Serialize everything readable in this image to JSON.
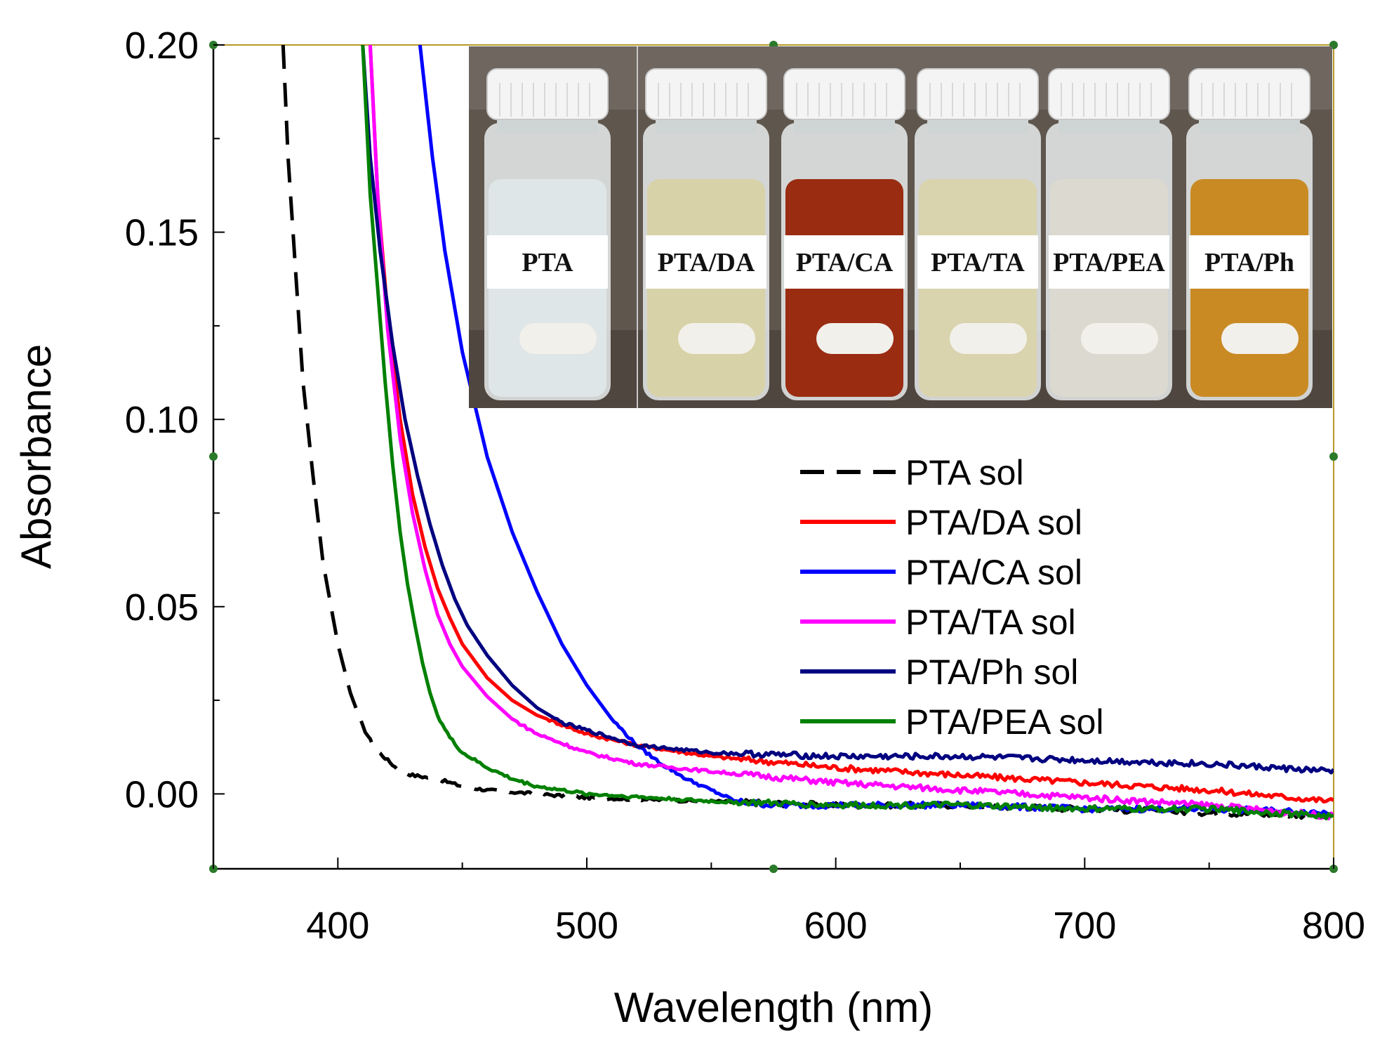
{
  "chart_data": {
    "type": "line",
    "title": "",
    "xlabel": "Wavelength (nm)",
    "ylabel": "Absorbance",
    "xlim": [
      350,
      800
    ],
    "ylim": [
      -0.02,
      0.2
    ],
    "x_ticks": [
      400,
      500,
      600,
      700,
      800
    ],
    "x_tick_labels": [
      "400",
      "500",
      "600",
      "700",
      "800"
    ],
    "y_ticks": [
      0.0,
      0.05,
      0.1,
      0.15,
      0.2
    ],
    "y_tick_labels": [
      "0.00",
      "0.05",
      "0.10",
      "0.15",
      "0.20"
    ],
    "grid": false,
    "legend_position": "center-right",
    "series": [
      {
        "name": "PTA sol",
        "color": "#000000",
        "style": "dashed",
        "points": [
          [
            378,
            0.2
          ],
          [
            380,
            0.17
          ],
          [
            383,
            0.14
          ],
          [
            386,
            0.11
          ],
          [
            390,
            0.085
          ],
          [
            394,
            0.062
          ],
          [
            400,
            0.04
          ],
          [
            405,
            0.027
          ],
          [
            410,
            0.018
          ],
          [
            415,
            0.012
          ],
          [
            420,
            0.009
          ],
          [
            425,
            0.006
          ],
          [
            430,
            0.005
          ],
          [
            440,
            0.004
          ],
          [
            450,
            0.002
          ],
          [
            460,
            0.001
          ],
          [
            480,
            0.0
          ],
          [
            500,
            -0.001
          ],
          [
            550,
            -0.002
          ],
          [
            600,
            -0.003
          ],
          [
            650,
            -0.003
          ],
          [
            700,
            -0.004
          ],
          [
            750,
            -0.005
          ],
          [
            800,
            -0.006
          ]
        ]
      },
      {
        "name": "PTA/DA sol",
        "color": "#ff0000",
        "style": "solid",
        "points": [
          [
            413,
            0.2
          ],
          [
            416,
            0.16
          ],
          [
            420,
            0.128
          ],
          [
            425,
            0.1
          ],
          [
            430,
            0.08
          ],
          [
            435,
            0.066
          ],
          [
            440,
            0.055
          ],
          [
            445,
            0.047
          ],
          [
            450,
            0.04
          ],
          [
            460,
            0.031
          ],
          [
            470,
            0.025
          ],
          [
            480,
            0.021
          ],
          [
            500,
            0.016
          ],
          [
            520,
            0.013
          ],
          [
            550,
            0.01
          ],
          [
            600,
            0.007
          ],
          [
            650,
            0.005
          ],
          [
            700,
            0.003
          ],
          [
            750,
            0.001
          ],
          [
            800,
            -0.002
          ]
        ]
      },
      {
        "name": "PTA/CA sol",
        "color": "#0000ff",
        "style": "solid",
        "points": [
          [
            433,
            0.2
          ],
          [
            438,
            0.17
          ],
          [
            443,
            0.145
          ],
          [
            450,
            0.118
          ],
          [
            460,
            0.09
          ],
          [
            470,
            0.07
          ],
          [
            480,
            0.054
          ],
          [
            490,
            0.04
          ],
          [
            500,
            0.029
          ],
          [
            510,
            0.02
          ],
          [
            520,
            0.013
          ],
          [
            530,
            0.008
          ],
          [
            540,
            0.004
          ],
          [
            550,
            0.001
          ],
          [
            560,
            -0.002
          ],
          [
            575,
            -0.003
          ],
          [
            600,
            -0.003
          ],
          [
            650,
            -0.003
          ],
          [
            700,
            -0.004
          ],
          [
            750,
            -0.004
          ],
          [
            800,
            -0.005
          ]
        ]
      },
      {
        "name": "PTA/TA sol",
        "color": "#ff00ff",
        "style": "solid",
        "points": [
          [
            413,
            0.2
          ],
          [
            416,
            0.16
          ],
          [
            420,
            0.124
          ],
          [
            425,
            0.095
          ],
          [
            430,
            0.075
          ],
          [
            435,
            0.06
          ],
          [
            440,
            0.048
          ],
          [
            445,
            0.04
          ],
          [
            450,
            0.034
          ],
          [
            460,
            0.026
          ],
          [
            470,
            0.02
          ],
          [
            480,
            0.016
          ],
          [
            500,
            0.011
          ],
          [
            520,
            0.008
          ],
          [
            550,
            0.006
          ],
          [
            600,
            0.003
          ],
          [
            650,
            0.001
          ],
          [
            700,
            -0.001
          ],
          [
            750,
            -0.003
          ],
          [
            800,
            -0.006
          ]
        ]
      },
      {
        "name": "PTA/Ph sol",
        "color": "#000080",
        "style": "solid",
        "points": [
          [
            410,
            0.2
          ],
          [
            413,
            0.17
          ],
          [
            417,
            0.145
          ],
          [
            422,
            0.12
          ],
          [
            427,
            0.1
          ],
          [
            432,
            0.085
          ],
          [
            437,
            0.072
          ],
          [
            442,
            0.061
          ],
          [
            447,
            0.052
          ],
          [
            452,
            0.045
          ],
          [
            460,
            0.037
          ],
          [
            470,
            0.029
          ],
          [
            480,
            0.023
          ],
          [
            490,
            0.019
          ],
          [
            500,
            0.017
          ],
          [
            520,
            0.013
          ],
          [
            550,
            0.011
          ],
          [
            600,
            0.01
          ],
          [
            650,
            0.01
          ],
          [
            700,
            0.009
          ],
          [
            750,
            0.008
          ],
          [
            800,
            0.006
          ]
        ]
      },
      {
        "name": "PTA/PEA sol",
        "color": "#008000",
        "style": "solid",
        "points": [
          [
            410,
            0.2
          ],
          [
            413,
            0.16
          ],
          [
            416,
            0.135
          ],
          [
            419,
            0.11
          ],
          [
            422,
            0.088
          ],
          [
            425,
            0.07
          ],
          [
            428,
            0.056
          ],
          [
            431,
            0.045
          ],
          [
            434,
            0.035
          ],
          [
            437,
            0.027
          ],
          [
            440,
            0.021
          ],
          [
            445,
            0.015
          ],
          [
            450,
            0.011
          ],
          [
            460,
            0.007
          ],
          [
            470,
            0.004
          ],
          [
            480,
            0.002
          ],
          [
            500,
            0.0
          ],
          [
            550,
            -0.002
          ],
          [
            600,
            -0.003
          ],
          [
            650,
            -0.003
          ],
          [
            700,
            -0.004
          ],
          [
            750,
            -0.004
          ],
          [
            800,
            -0.006
          ]
        ]
      }
    ]
  },
  "inset_photo": {
    "vials": [
      {
        "label": "PTA",
        "liquid": "#dfe6e8"
      },
      {
        "label": "PTA/DA",
        "liquid": "#d8d2a8"
      },
      {
        "label": "PTA/CA",
        "liquid": "#9a2c12"
      },
      {
        "label": "PTA/TA",
        "liquid": "#d9d4ae"
      },
      {
        "label": "PTA/PEA",
        "liquid": "#dcdad0"
      },
      {
        "label": "PTA/Ph",
        "liquid": "#c98a24"
      }
    ]
  }
}
